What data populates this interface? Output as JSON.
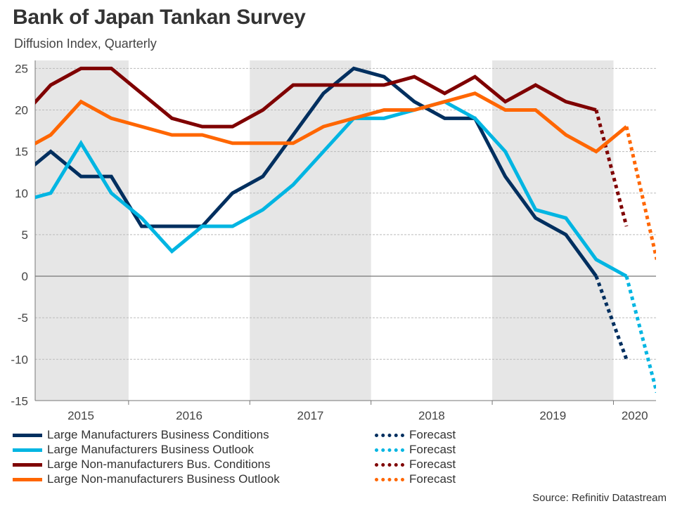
{
  "chart_data": {
    "type": "line",
    "title": "Bank of Japan Tankan Survey",
    "subtitle": "Diffusion Index, Quarterly",
    "source": "Source: Refinitiv Datastream",
    "ylim": [
      -15,
      25
    ],
    "yticks": [
      25,
      20,
      15,
      10,
      5,
      0,
      -5,
      -10,
      -15
    ],
    "grid": true,
    "x_categories": [
      "2015Q1",
      "2015Q2",
      "2015Q3",
      "2015Q4",
      "2016Q1",
      "2016Q2",
      "2016Q3",
      "2016Q4",
      "2017Q1",
      "2017Q2",
      "2017Q3",
      "2017Q4",
      "2018Q1",
      "2018Q2",
      "2018Q3",
      "2018Q4",
      "2019Q1",
      "2019Q2",
      "2019Q3",
      "2019Q4",
      "2020Q1",
      "2020Q2"
    ],
    "year_labels": [
      "2015",
      "2016",
      "2017",
      "2018",
      "2019",
      "2020"
    ],
    "shaded_years": [
      "2015",
      "2017",
      "2019"
    ],
    "legend_placement": "bottom",
    "series": [
      {
        "name": "Large Manufacturers Business Conditions",
        "color": "#002f5f",
        "values": [
          12,
          15,
          12,
          12,
          6,
          6,
          6,
          10,
          12,
          17,
          22,
          25,
          24,
          21,
          19,
          19,
          12,
          7,
          5,
          0
        ],
        "forecast_name": "Forecast",
        "forecast": {
          "from": "2019Q4",
          "to": "2020Q1",
          "values": [
            0,
            -10
          ]
        }
      },
      {
        "name": "Large Manufacturers Business Outlook",
        "color": "#00b5e2",
        "values": [
          9,
          10,
          16,
          10,
          7,
          3,
          6,
          6,
          8,
          11,
          15,
          19,
          19,
          20,
          21,
          19,
          15,
          8,
          7,
          2,
          0
        ],
        "forecast_name": "Forecast",
        "forecast": {
          "from": "2020Q1",
          "to": "2020Q2",
          "values": [
            0,
            -14
          ]
        }
      },
      {
        "name": "Large Non-manufacturers Bus. Conditions",
        "color": "#7f0000",
        "values": [
          19,
          23,
          25,
          25,
          22,
          19,
          18,
          18,
          20,
          23,
          23,
          23,
          23,
          24,
          22,
          24,
          21,
          23,
          21,
          20
        ],
        "forecast_name": "Forecast",
        "forecast": {
          "from": "2019Q4",
          "to": "2020Q1",
          "values": [
            20,
            6
          ]
        }
      },
      {
        "name": "Large Non-manufacturers Business Outlook",
        "color": "#ff6600",
        "values": [
          15,
          17,
          21,
          19,
          18,
          17,
          17,
          16,
          16,
          16,
          18,
          19,
          20,
          20,
          21,
          22,
          20,
          20,
          17,
          15,
          18
        ],
        "forecast_name": "Forecast",
        "forecast": {
          "from": "2020Q1",
          "to": "2020Q2",
          "values": [
            18,
            2
          ]
        }
      }
    ]
  }
}
